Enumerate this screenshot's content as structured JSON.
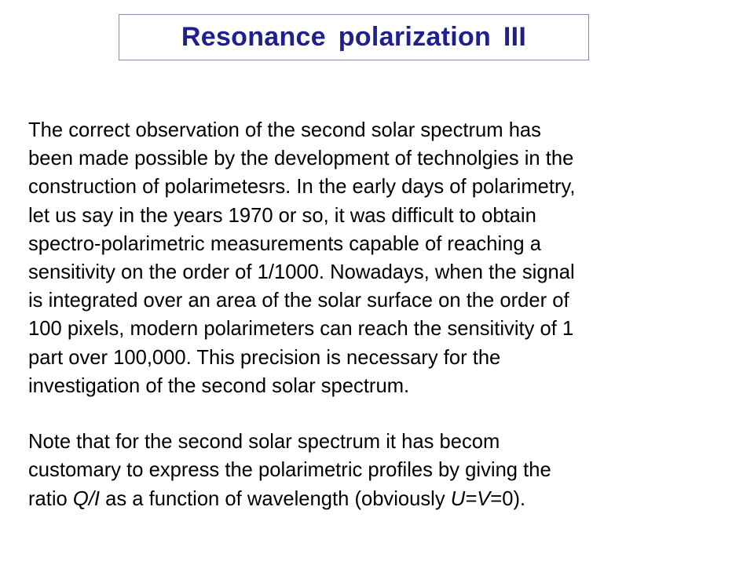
{
  "slide": {
    "title": "Resonance polarization III",
    "paragraph1": [
      "The correct observation of the second solar spectrum has",
      "been made possible by the development of technolgies in the",
      "construction of polarimetesrs. In the early days of polarimetry,",
      "let us say in the years 1970 or so, it was difficult to obtain",
      "spectro-polarimetric measurements capable of reaching a",
      "sensitivity on the order of 1/1000. Nowadays, when the signal",
      "is integrated over an area of the solar surface on the order of",
      "100 pixels, modern polarimeters can reach the sensitivity of 1",
      "part over 100,000. This precision is necessary for the",
      "investigation of the second solar spectrum."
    ],
    "paragraph2": {
      "line1": "Note that for the second solar spectrum it has becom",
      "line2": "customary to express the polarimetric profiles by giving the",
      "line3": {
        "part1": "ratio ",
        "qi": "Q/I",
        "part2": " as a function of wavelength (obviously ",
        "uv": "U=V",
        "part3": "=0)."
      }
    },
    "colors": {
      "title": "#1f1f8f",
      "title_border": "#8a8ab0",
      "text": "#000000",
      "background": "#ffffff"
    }
  }
}
